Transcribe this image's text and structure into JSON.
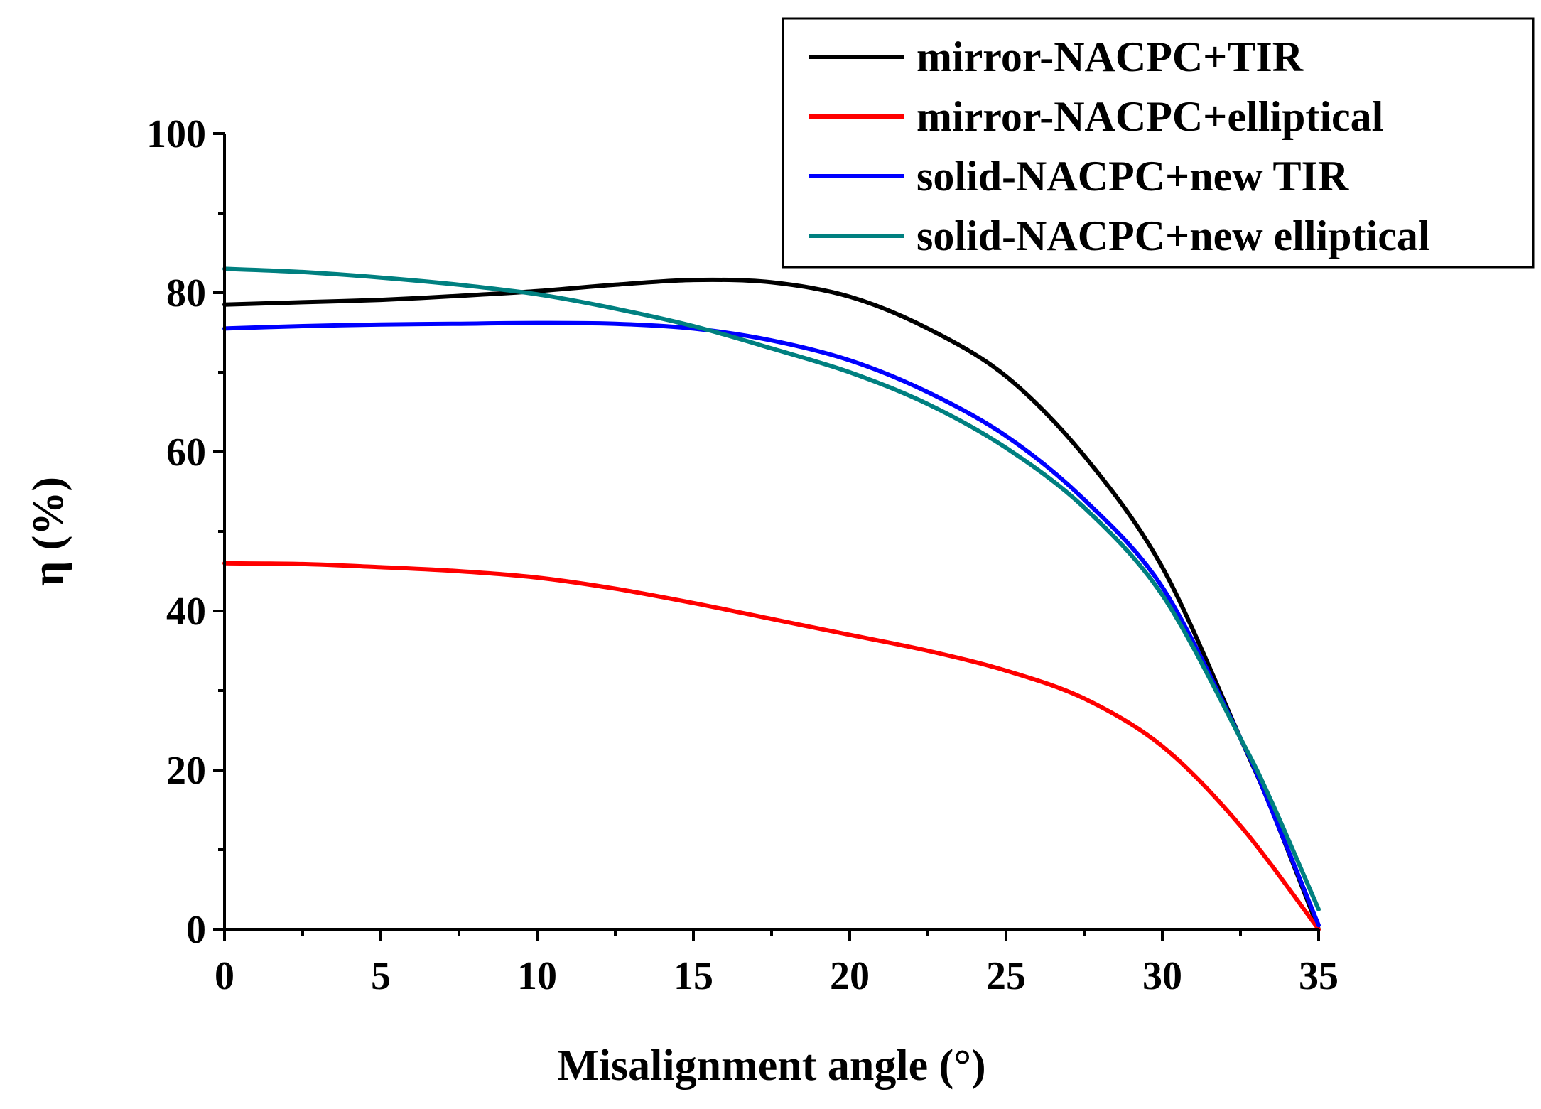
{
  "chart_data": {
    "type": "line",
    "title": "",
    "xlabel": "Misalignment angle (°)",
    "ylabel": "η (%)",
    "xlim": [
      0,
      35
    ],
    "ylim": [
      0,
      100
    ],
    "xticks": [
      0,
      5,
      10,
      15,
      20,
      25,
      30,
      35
    ],
    "yticks": [
      0,
      20,
      40,
      60,
      80,
      100
    ],
    "grid": false,
    "legend_position": "top-right",
    "series": [
      {
        "name": "mirror-NACPC+TIR",
        "color": "#000000",
        "x": [
          0,
          2.5,
          5,
          7.5,
          10,
          12.5,
          15,
          17.5,
          20,
          22.5,
          25,
          27.5,
          30,
          32.5,
          33.5,
          35
        ],
        "y": [
          78.5,
          78.8,
          79.1,
          79.6,
          80.2,
          81.0,
          81.6,
          81.3,
          79.5,
          75.5,
          69.5,
          59.5,
          45.5,
          24.0,
          15.0,
          0.0
        ]
      },
      {
        "name": "mirror-NACPC+elliptical",
        "color": "#ff0000",
        "x": [
          0,
          2.5,
          5,
          7.5,
          10,
          12.5,
          15,
          17.5,
          20,
          22.5,
          25,
          27.5,
          30,
          32.5,
          35
        ],
        "y": [
          46.0,
          45.9,
          45.5,
          45.0,
          44.2,
          42.8,
          41.0,
          39.0,
          37.0,
          35.0,
          32.5,
          29.0,
          23.0,
          13.0,
          0.0
        ]
      },
      {
        "name": "solid-NACPC+new TIR",
        "color": "#0000ff",
        "x": [
          0,
          2.5,
          5,
          7.5,
          10,
          12.5,
          15,
          17.5,
          20,
          22.5,
          25,
          27.5,
          30,
          32.5,
          33.5,
          35
        ],
        "y": [
          75.5,
          75.8,
          76.0,
          76.1,
          76.2,
          76.1,
          75.5,
          74.0,
          71.5,
          67.5,
          62.0,
          54.0,
          43.0,
          24.0,
          15.0,
          0.5
        ]
      },
      {
        "name": "solid-NACPC+new elliptical",
        "color": "#008080",
        "x": [
          0,
          2.5,
          5,
          7.5,
          10,
          12.5,
          15,
          17.5,
          20,
          22.5,
          25,
          27.5,
          30,
          32.5,
          33.5,
          35
        ],
        "y": [
          83.0,
          82.6,
          81.9,
          81.0,
          79.8,
          78.0,
          75.8,
          73.0,
          70.0,
          66.0,
          60.5,
          53.0,
          42.0,
          24.0,
          16.0,
          2.5
        ]
      }
    ]
  }
}
